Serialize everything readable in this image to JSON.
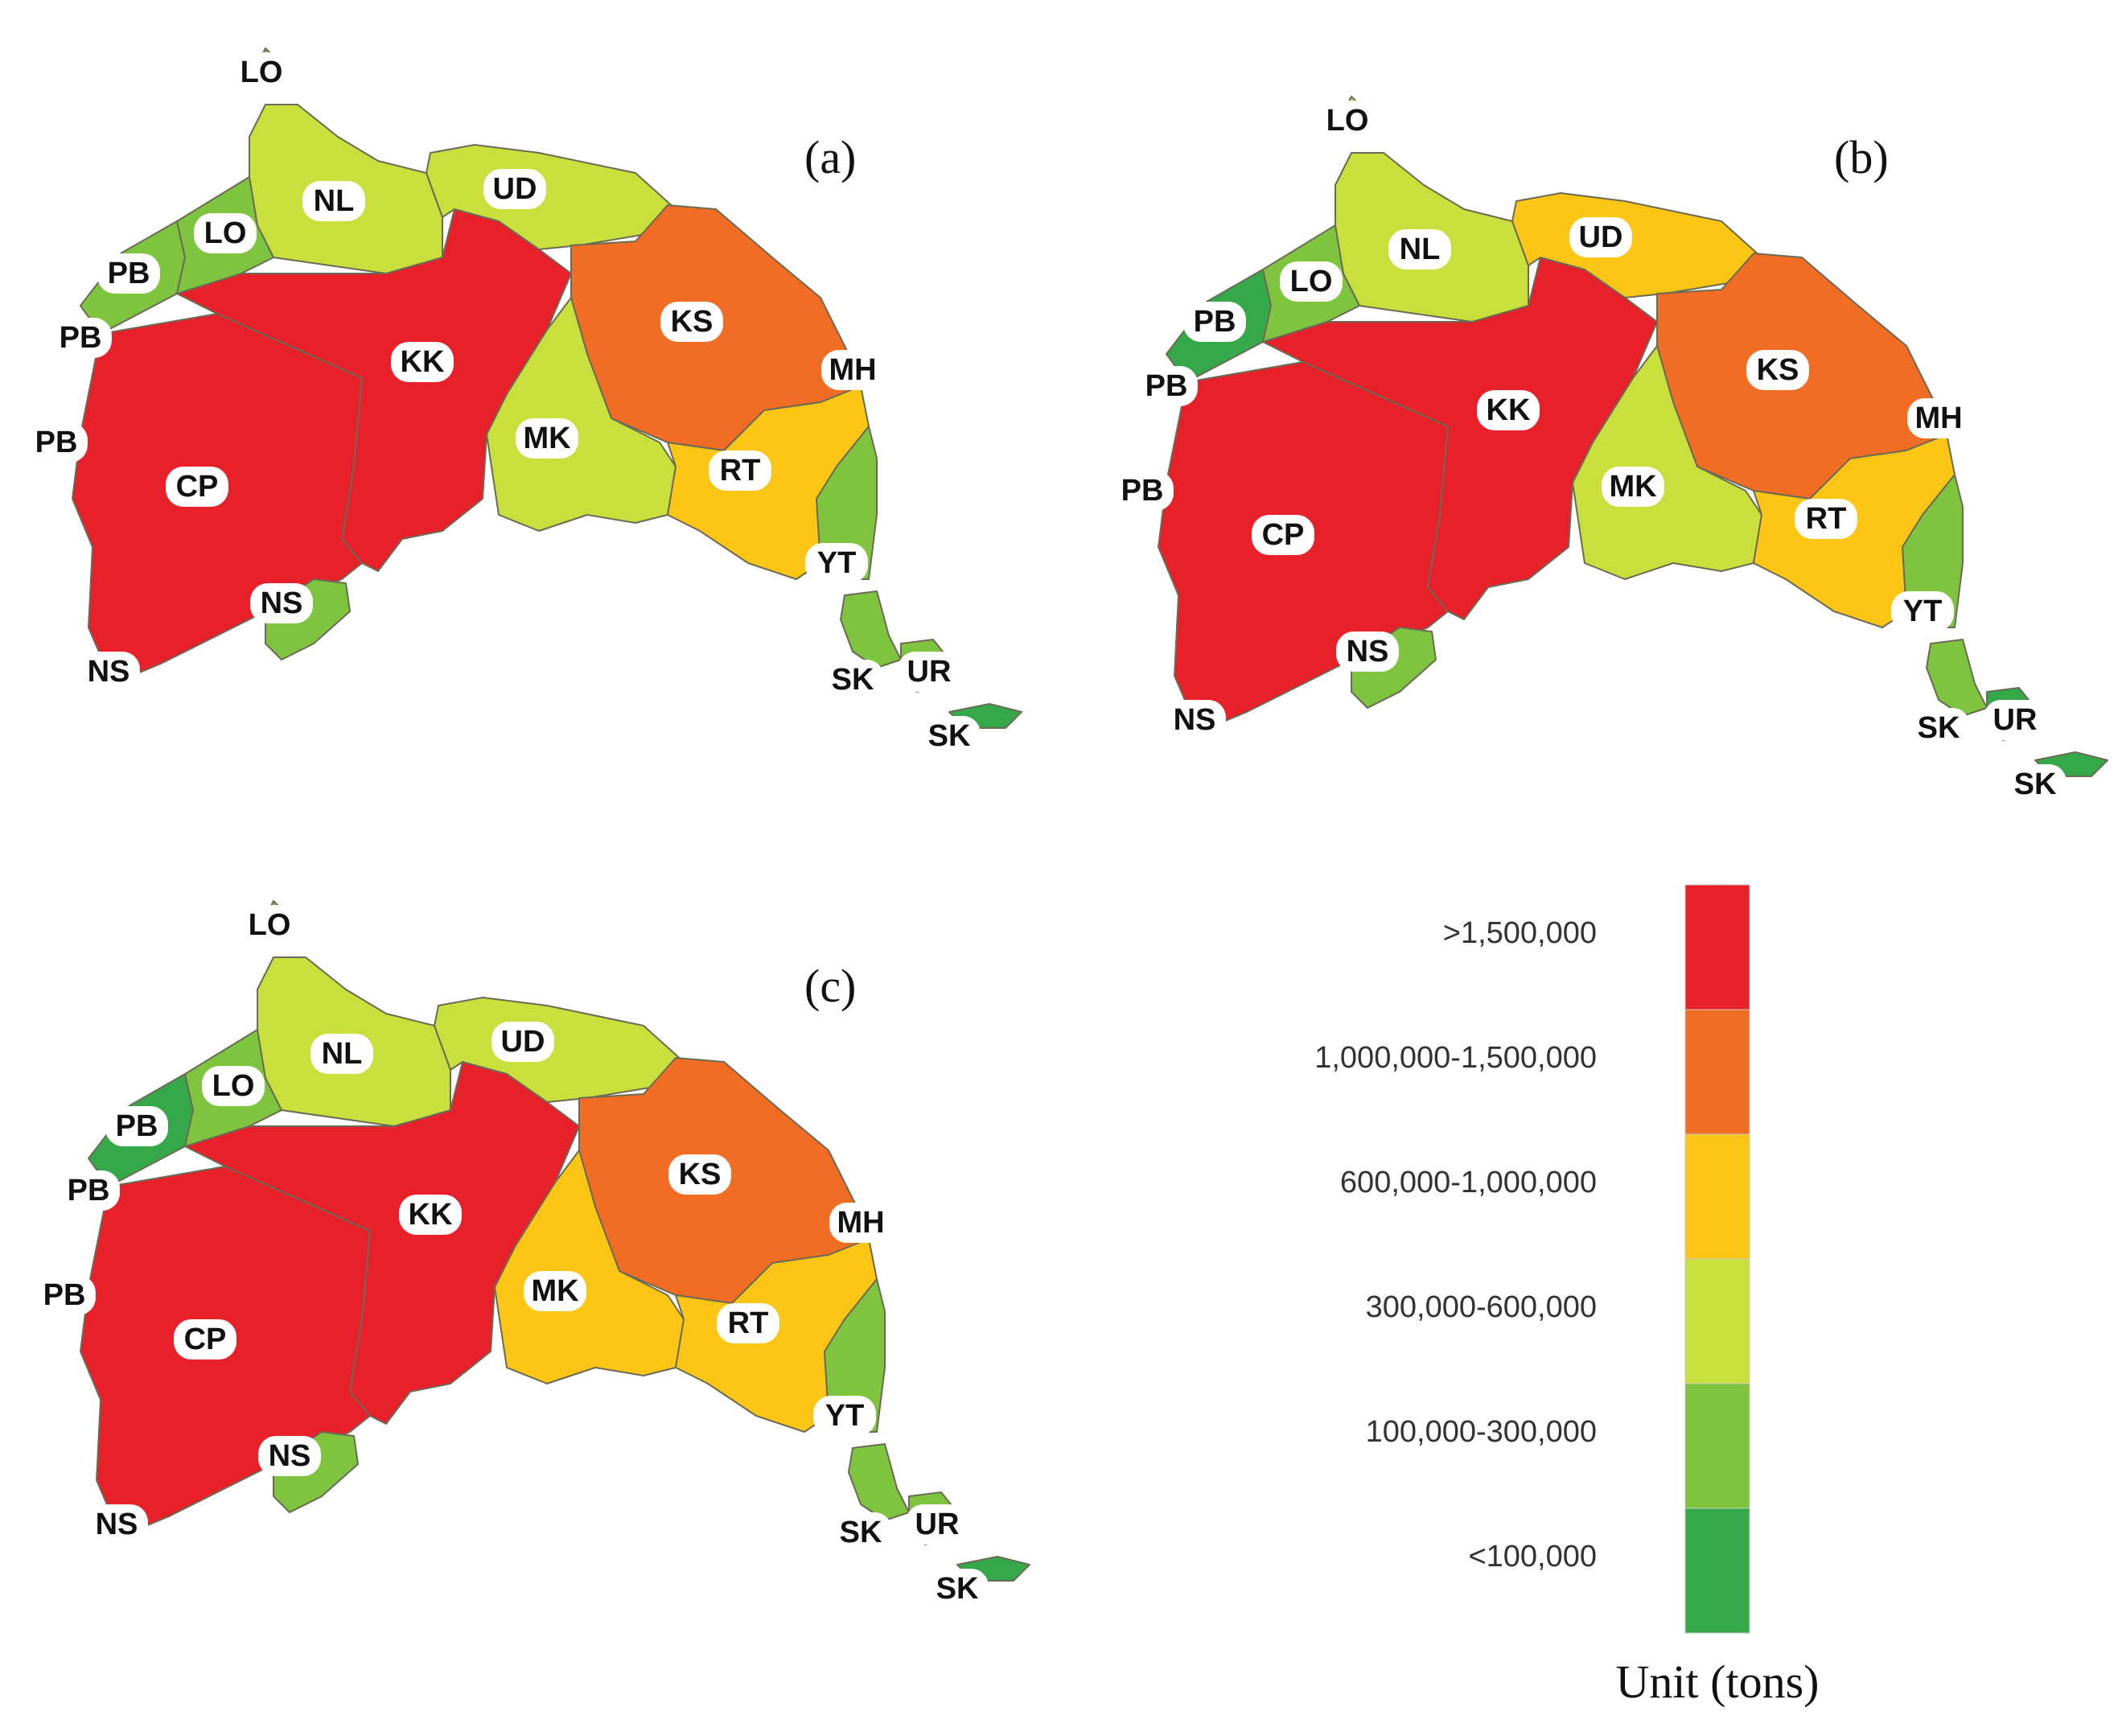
{
  "colors": {
    "c1": "#e8202a",
    "c2": "#f06d23",
    "c3": "#fdc514",
    "c4": "#c9e03c",
    "c5": "#7fc43f",
    "c6": "#35a84a",
    "water": "#1f3f8f"
  },
  "legend": {
    "unit": "Unit (tons)",
    "classes": [
      {
        "label": ">1,500,000",
        "color": "c1"
      },
      {
        "label": "1,000,000-1,500,000",
        "color": "c2"
      },
      {
        "label": "600,000-1,000,000",
        "color": "c3"
      },
      {
        "label": "300,000-600,000",
        "color": "c4"
      },
      {
        "label": "100,000-300,000",
        "color": "c5"
      },
      {
        "label": "<100,000",
        "color": "c6"
      }
    ]
  },
  "maps": [
    {
      "tag": "(a)",
      "fill": {
        "LO_N": "c5",
        "NL": "c4",
        "LO": "c5",
        "PB": "c5",
        "UD": "c4",
        "KS": "c2",
        "KK": "c1",
        "CP": "c1",
        "MK": "c4",
        "RT": "c3",
        "MH": "c5",
        "NS": "c5",
        "YT": "c5",
        "UR": "c5",
        "SK": "c6"
      },
      "labels": {
        "LO_top": "LO",
        "LO": "LO",
        "NL": "NL",
        "UD": "UD",
        "PB1": "PB",
        "PB2": "PB",
        "PB3": "PB",
        "KK": "KK",
        "KS": "KS",
        "MH": "MH",
        "MK": "MK",
        "RT": "RT",
        "CP": "CP",
        "NS1": "NS",
        "NS2": "NS",
        "YT": "YT",
        "SK1": "SK",
        "UR": "UR",
        "SK2": "SK"
      }
    },
    {
      "tag": "(b)",
      "fill": {
        "LO_N": "c4",
        "NL": "c4",
        "LO": "c5",
        "PB": "c6",
        "UD": "c3",
        "KS": "c2",
        "KK": "c1",
        "CP": "c1",
        "MK": "c4",
        "RT": "c3",
        "MH": "c5",
        "NS": "c5",
        "YT": "c5",
        "UR": "c6",
        "SK": "c6"
      },
      "labels": {
        "LO_top": "LO",
        "LO": "LO",
        "NL": "NL",
        "UD": "UD",
        "PB1": "PB",
        "PB2": "PB",
        "PB3": "PB",
        "KK": "KK",
        "KS": "KS",
        "MH": "MH",
        "MK": "MK",
        "RT": "RT",
        "CP": "CP",
        "NS1": "NS",
        "NS2": "NS",
        "YT": "YT",
        "SK1": "SK",
        "UR": "UR",
        "SK2": "SK"
      }
    },
    {
      "tag": "(c)",
      "fill": {
        "LO_N": "c5",
        "NL": "c4",
        "LO": "c5",
        "PB": "c6",
        "UD": "c4",
        "KS": "c2",
        "KK": "c1",
        "CP": "c1",
        "MK": "c3",
        "RT": "c3",
        "MH": "c5",
        "NS": "c5",
        "YT": "c5",
        "UR": "c5",
        "SK": "c6"
      },
      "labels": {
        "LO_top": "LO",
        "LO": "LO",
        "NL": "NL",
        "UD": "UD",
        "PB1": "PB",
        "PB2": "PB",
        "PB3": "PB",
        "KK": "KK",
        "KS": "KS",
        "MH": "MH",
        "MK": "MK",
        "RT": "RT",
        "CP": "CP",
        "NS1": "NS",
        "NS2": "NS",
        "YT": "YT",
        "SK1": "SK",
        "UR": "UR",
        "SK2": "SK"
      }
    }
  ]
}
